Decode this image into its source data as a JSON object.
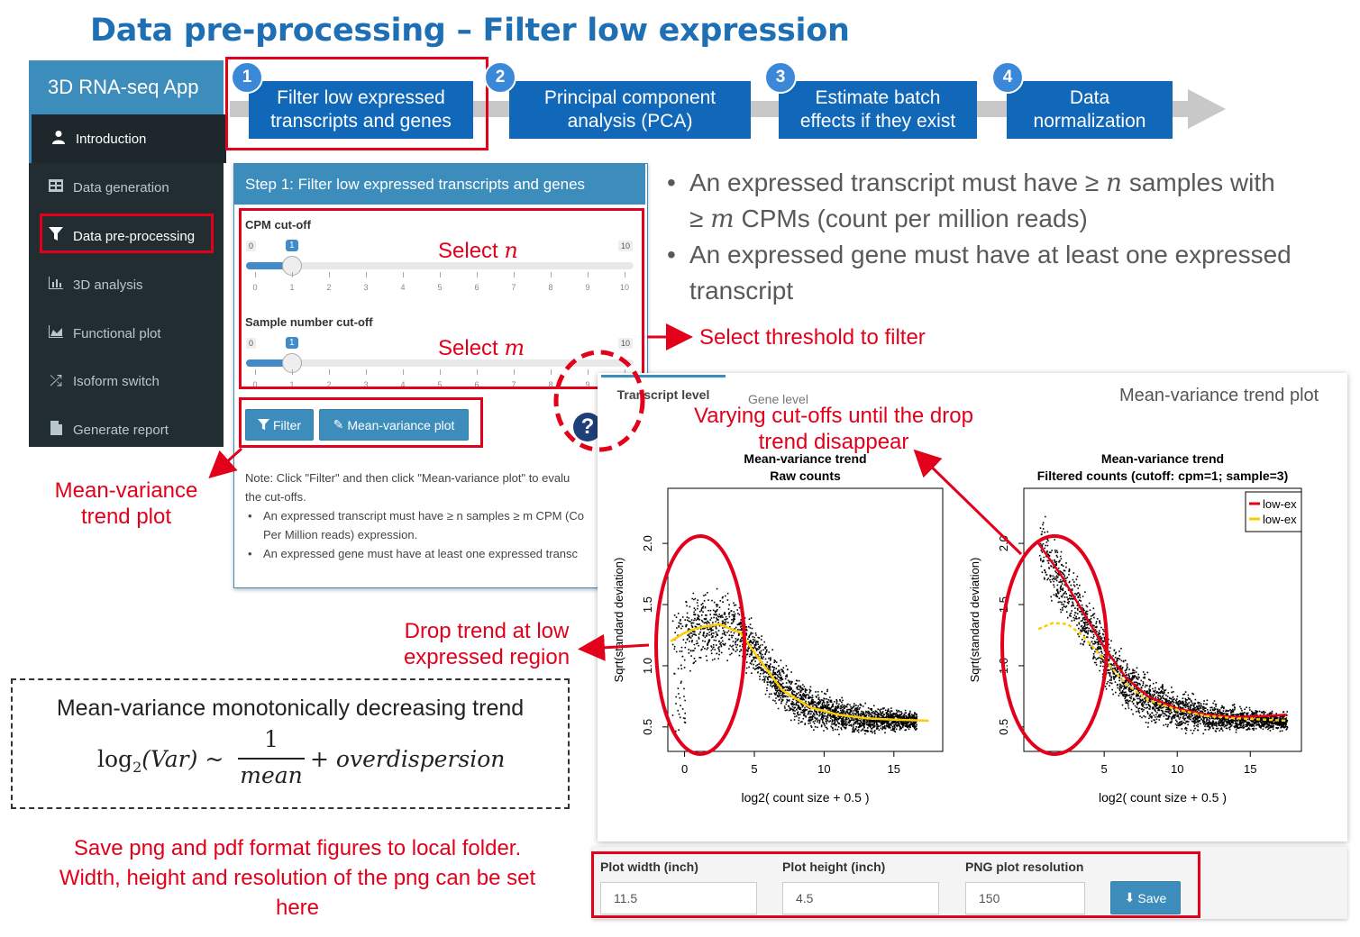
{
  "slide": {
    "title": "Data pre-processing – Filter low expression"
  },
  "sidebar": {
    "app_title": "3D RNA-seq App",
    "items": [
      {
        "label": "Introduction",
        "icon": "user-icon"
      },
      {
        "label": "Data generation",
        "icon": "table-icon"
      },
      {
        "label": "Data pre-processing",
        "icon": "filter-icon"
      },
      {
        "label": "3D analysis",
        "icon": "bar-chart-icon"
      },
      {
        "label": "Functional plot",
        "icon": "area-chart-icon"
      },
      {
        "label": "Isoform switch",
        "icon": "shuffle-icon"
      },
      {
        "label": "Generate report",
        "icon": "file-icon"
      }
    ]
  },
  "steps": [
    {
      "num": "1",
      "line1": "Filter low expressed",
      "line2": "transcripts and genes"
    },
    {
      "num": "2",
      "line1": "Principal component",
      "line2": "analysis (PCA)"
    },
    {
      "num": "3",
      "line1": "Estimate batch",
      "line2": "effects if they exist"
    },
    {
      "num": "4",
      "line1": "Data",
      "line2": "normalization"
    }
  ],
  "bullets": {
    "b1": "An expressed transcript must have ≥ n samples with ≥ m CPMs (count per million reads)",
    "b1_l1_pre": "An expressed transcript must have ≥ ",
    "b1_l1_var": "n",
    "b1_l1_post": " samples with",
    "b1_l2_pre": "≥ ",
    "b1_l2_var": "m",
    "b1_l2_post": " CPMs (count per million reads)",
    "b2_l1": "An expressed gene must have at least one expressed",
    "b2_l2": "transcript"
  },
  "panel": {
    "header": "Step 1: Filter low expressed transcripts and genes",
    "cpm_label": "CPM cut-off",
    "cpm_min": "0",
    "cpm_max": "10",
    "cpm_value": 1,
    "sample_label": "Sample number cut-off",
    "sample_min": "0",
    "sample_max": "10",
    "sample_value": 1,
    "ticks": [
      "0",
      "1",
      "2",
      "3",
      "4",
      "5",
      "6",
      "7",
      "8",
      "9",
      "10"
    ],
    "filter_button": "Filter",
    "mv_button": "Mean-variance plot",
    "help_icon": "?",
    "note_line1": "Note: Click \"Filter\" and then click \"Mean-variance plot\" to evalu",
    "note_line2": "the cut-offs.",
    "note_b1_l1": "An expressed transcript must have ≥ n samples ≥ m CPM (Co",
    "note_b1_l2": "Per Million reads) expression.",
    "note_b2": "An expressed gene must have at least one expressed transc"
  },
  "annotations": {
    "select_n_pre": "Select ",
    "select_n_var": "n",
    "select_m_pre": "Select ",
    "select_m_var": "m",
    "select_threshold": "Select threshold to filter",
    "varying_l1": "Varying cut-offs until the drop",
    "varying_l2": "trend disappear",
    "mv_trend_l1": "Mean-variance",
    "mv_trend_l2": "trend plot",
    "drop_l1": "Drop trend at low",
    "drop_l2": "expressed region",
    "save_l1": "Save png and pdf format figures to local folder.",
    "save_l2": "Width, height and resolution of the png can be set",
    "save_l3": "here"
  },
  "formula": {
    "heading": "Mean-variance monotonically decreasing trend",
    "lhs": "log",
    "sub": "2",
    "lhs_arg": "(Var) ~",
    "num": "1",
    "den": "mean",
    "rhs": "+ overdispersion"
  },
  "plot_panel": {
    "tab_active": "Transcript level",
    "tab_other": "Gene level",
    "title": "Mean-variance trend plot"
  },
  "save": {
    "width_label": "Plot width (inch)",
    "width_value": "11.5",
    "height_label": "Plot height (inch)",
    "height_value": "4.5",
    "res_label": "PNG plot resolution",
    "res_value": "150",
    "save_button": "Save"
  },
  "chart_data": [
    {
      "type": "scatter",
      "title": "Mean-variance trend\nRaw counts",
      "title_l1": "Mean-variance trend",
      "title_l2": "Raw counts",
      "xlabel": "log2( count size + 0.5 )",
      "ylabel": "Sqrt(standard deviation)",
      "x_ticks": [
        "0",
        "5",
        "10",
        "15"
      ],
      "y_ticks": [
        "0.5",
        "1.0",
        "1.5",
        "2.0"
      ],
      "xlim": [
        -1.2,
        18.5
      ],
      "ylim": [
        0.3,
        2.45
      ],
      "trend": {
        "color": "#ffcc00",
        "x": [
          -1,
          0,
          1,
          2.5,
          4,
          5.5,
          7,
          9,
          11,
          13,
          15,
          17.5
        ],
        "y": [
          1.2,
          1.27,
          1.31,
          1.34,
          1.27,
          1.03,
          0.8,
          0.66,
          0.6,
          0.57,
          0.56,
          0.55
        ]
      }
    },
    {
      "type": "scatter",
      "title": "Mean-variance trend\nFiltered counts (cutoff: cpm=1; sample=3)",
      "title_l1": "Mean-variance trend",
      "title_l2": "Filtered counts (cutoff: cpm=1; sample=3)",
      "xlabel": "log2( count size + 0.5 )",
      "ylabel": "Sqrt(standard deviation)",
      "x_ticks": [
        "5",
        "10",
        "15"
      ],
      "y_ticks": [
        "0.5",
        "1.0",
        "1.5",
        "2.0"
      ],
      "xlim": [
        -0.5,
        18.5
      ],
      "ylim": [
        0.3,
        2.45
      ],
      "legend": [
        "low-ex",
        "low-ex"
      ],
      "trend_red": {
        "color": "#e3001b",
        "x": [
          0.5,
          2,
          3.5,
          5,
          6.5,
          8,
          10,
          12,
          14,
          16,
          17.5
        ],
        "y": [
          2.0,
          1.75,
          1.45,
          1.15,
          0.9,
          0.75,
          0.65,
          0.6,
          0.58,
          0.59,
          0.6
        ]
      },
      "trend_yellow": {
        "color": "#ffcc00",
        "x": [
          0.5,
          1.5,
          2.5,
          3.5,
          5,
          6.5,
          8,
          10,
          12,
          14,
          16,
          17.5
        ],
        "y": [
          1.3,
          1.35,
          1.34,
          1.25,
          1.05,
          0.85,
          0.72,
          0.64,
          0.59,
          0.57,
          0.56,
          0.55
        ]
      }
    }
  ]
}
